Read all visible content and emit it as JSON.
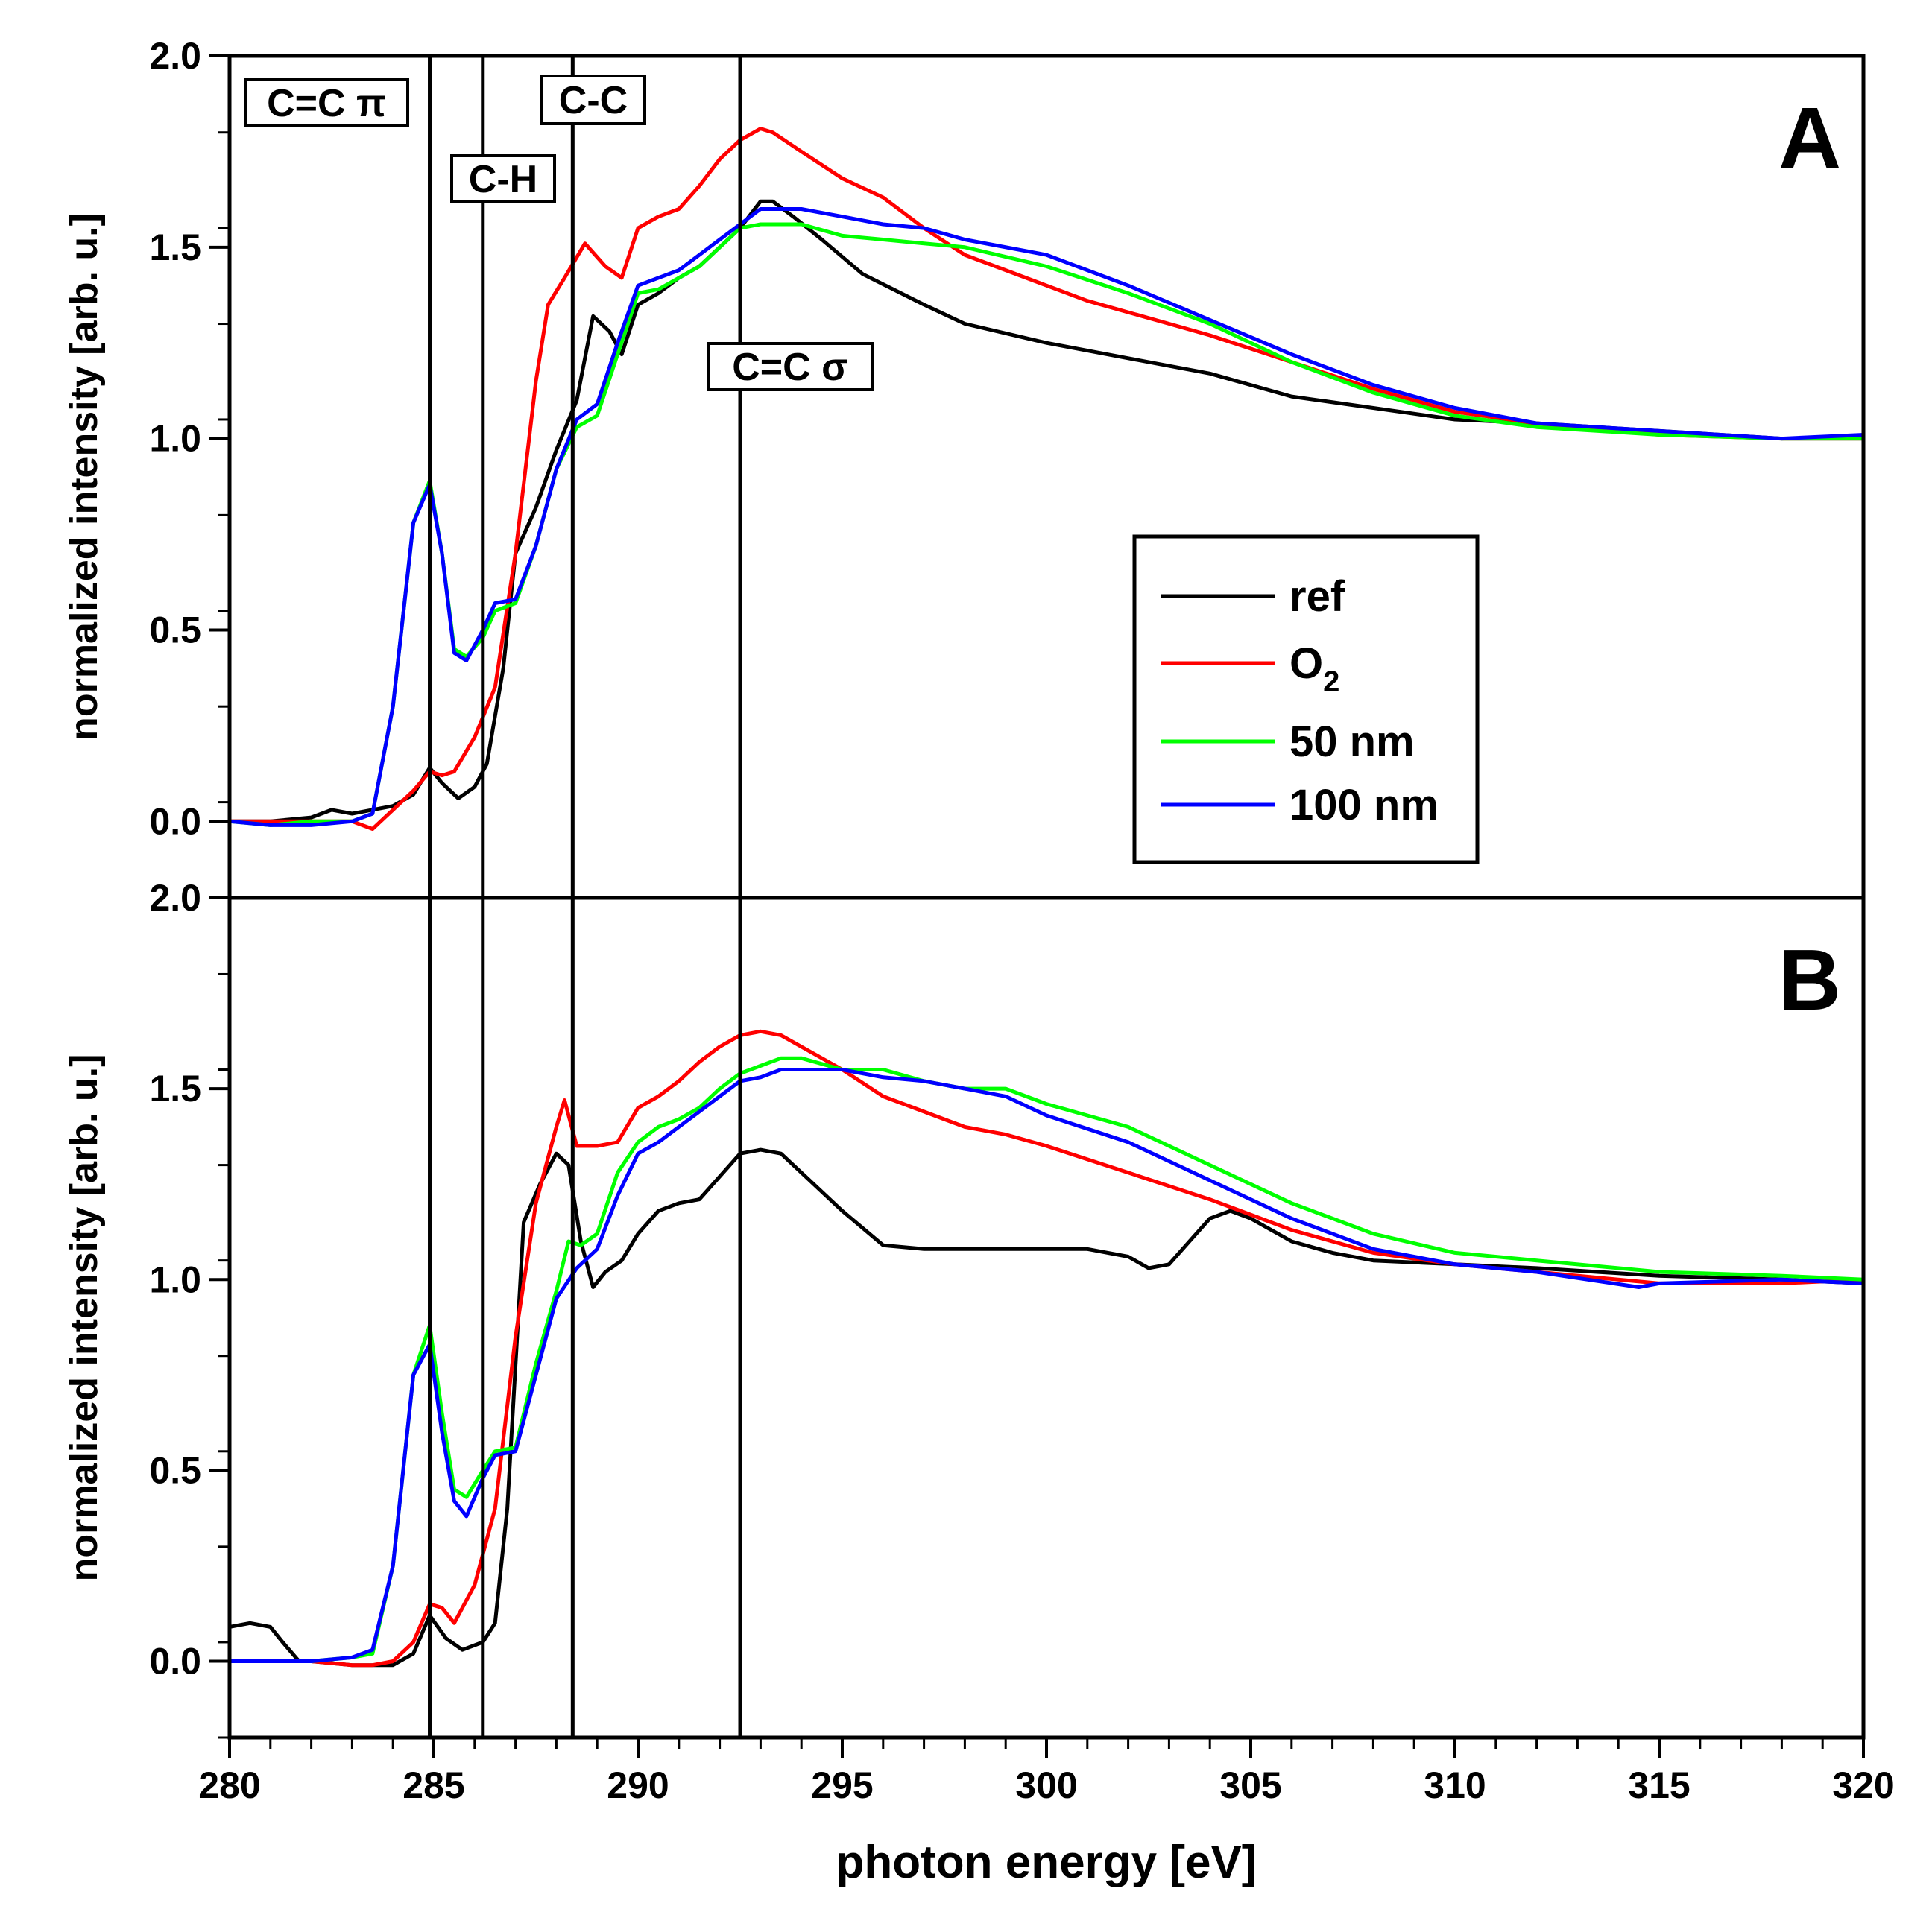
{
  "chart_data": [
    {
      "panel": "A",
      "type": "line",
      "title": "A",
      "xlabel": "photon energy [eV]",
      "ylabel": "normalized intensity [arb. u.]",
      "xlim": [
        280,
        320
      ],
      "ylim": [
        -0.2,
        2.0
      ],
      "xticks": [
        "280",
        "285",
        "290",
        "295",
        "300",
        "305",
        "310",
        "315",
        "320"
      ],
      "yticks": [
        "0.0",
        "0.5",
        "1.0",
        "1.5",
        "2.0"
      ],
      "yticks_values": [
        0.0,
        0.5,
        1.0,
        1.5,
        2.0
      ],
      "grid": false,
      "legend": {
        "position": "middle-right",
        "entries": [
          "ref",
          "O",
          "50 nm",
          "100 nm"
        ],
        "o2_subscript": "2"
      },
      "series": [
        {
          "name": "ref",
          "color": "#000000",
          "x": [
            280,
            281,
            282,
            282.5,
            283,
            284,
            284.5,
            284.9,
            285.2,
            285.6,
            286,
            286.3,
            286.7,
            287,
            287.5,
            288,
            288.5,
            288.9,
            289.3,
            289.6,
            290,
            290.5,
            291,
            291.5,
            292,
            292.5,
            293,
            293.3,
            293.8,
            294.5,
            295.5,
            297,
            298,
            300,
            302,
            304,
            306,
            308,
            310,
            312,
            315,
            318,
            320
          ],
          "values": [
            0.0,
            0.0,
            0.01,
            0.03,
            0.02,
            0.04,
            0.07,
            0.14,
            0.1,
            0.06,
            0.09,
            0.15,
            0.4,
            0.7,
            0.82,
            0.97,
            1.1,
            1.32,
            1.28,
            1.22,
            1.35,
            1.38,
            1.42,
            1.45,
            1.5,
            1.55,
            1.62,
            1.62,
            1.58,
            1.52,
            1.43,
            1.35,
            1.3,
            1.25,
            1.21,
            1.17,
            1.11,
            1.08,
            1.05,
            1.04,
            1.02,
            1.0,
            1.0
          ]
        },
        {
          "name": "O",
          "color": "#ff0000",
          "x": [
            280,
            281,
            282,
            283,
            283.5,
            284,
            284.5,
            284.9,
            285.2,
            285.5,
            286,
            286.5,
            287,
            287.5,
            287.8,
            288.2,
            288.7,
            289.2,
            289.6,
            290,
            290.5,
            291,
            291.5,
            292,
            292.5,
            293,
            293.3,
            294,
            295,
            296,
            297,
            298,
            299,
            300,
            301,
            302,
            303,
            304,
            306,
            308,
            310,
            312,
            315,
            318,
            320
          ],
          "values": [
            0.0,
            0.0,
            0.0,
            0.0,
            -0.02,
            0.03,
            0.08,
            0.13,
            0.12,
            0.13,
            0.22,
            0.35,
            0.7,
            1.15,
            1.35,
            1.42,
            1.51,
            1.45,
            1.42,
            1.55,
            1.58,
            1.6,
            1.66,
            1.73,
            1.78,
            1.81,
            1.8,
            1.75,
            1.68,
            1.63,
            1.55,
            1.48,
            1.44,
            1.4,
            1.36,
            1.33,
            1.3,
            1.27,
            1.2,
            1.13,
            1.07,
            1.04,
            1.01,
            1.0,
            1.0
          ]
        },
        {
          "name": "50 nm",
          "color": "#00ff00",
          "x": [
            280,
            281,
            282,
            283,
            283.5,
            284,
            284.5,
            284.9,
            285.2,
            285.5,
            285.8,
            286.2,
            286.5,
            287,
            287.5,
            288,
            288.5,
            289,
            289.5,
            290,
            290.5,
            291,
            291.5,
            292,
            292.5,
            293,
            294,
            295,
            296,
            297,
            298,
            300,
            302,
            304,
            306,
            308,
            310,
            312,
            315,
            318,
            320
          ],
          "values": [
            0.0,
            -0.01,
            0.0,
            0.0,
            0.02,
            0.3,
            0.78,
            0.89,
            0.7,
            0.45,
            0.43,
            0.48,
            0.55,
            0.57,
            0.72,
            0.92,
            1.03,
            1.06,
            1.22,
            1.38,
            1.39,
            1.42,
            1.45,
            1.5,
            1.55,
            1.56,
            1.56,
            1.53,
            1.52,
            1.51,
            1.5,
            1.45,
            1.38,
            1.3,
            1.2,
            1.12,
            1.06,
            1.03,
            1.01,
            1.0,
            1.0
          ]
        },
        {
          "name": "100 nm",
          "color": "#0000ff",
          "x": [
            280,
            281,
            282,
            283,
            283.5,
            284,
            284.5,
            284.9,
            285.2,
            285.5,
            285.8,
            286.2,
            286.5,
            287,
            287.5,
            288,
            288.5,
            289,
            289.5,
            290,
            290.5,
            291,
            291.5,
            292,
            292.5,
            293,
            294,
            295,
            296,
            297,
            298,
            300,
            302,
            304,
            306,
            308,
            310,
            312,
            315,
            318,
            320
          ],
          "values": [
            0.0,
            -0.01,
            -0.01,
            0.0,
            0.02,
            0.3,
            0.78,
            0.88,
            0.7,
            0.44,
            0.42,
            0.5,
            0.57,
            0.58,
            0.72,
            0.92,
            1.05,
            1.09,
            1.25,
            1.4,
            1.42,
            1.44,
            1.48,
            1.52,
            1.56,
            1.6,
            1.6,
            1.58,
            1.56,
            1.55,
            1.52,
            1.48,
            1.4,
            1.31,
            1.22,
            1.14,
            1.08,
            1.04,
            1.02,
            1.0,
            1.01
          ]
        }
      ],
      "annotations": [
        {
          "text": "C=C π",
          "x": 284.9
        },
        {
          "text": "C-H",
          "x": 286.2
        },
        {
          "text": "C-C",
          "x": 288.4
        },
        {
          "text": "C=C σ",
          "x": 292.5
        }
      ]
    },
    {
      "panel": "B",
      "type": "line",
      "title": "B",
      "xlabel": "photon energy [eV]",
      "ylabel": "normalized intensity [arb. u.]",
      "xlim": [
        280,
        320
      ],
      "ylim": [
        -0.2,
        2.0
      ],
      "xticks": [
        "280",
        "285",
        "290",
        "295",
        "300",
        "305",
        "310",
        "315",
        "320"
      ],
      "yticks": [
        "0.0",
        "0.5",
        "1.0",
        "1.5",
        "2.0"
      ],
      "yticks_values": [
        0.0,
        0.5,
        1.0,
        1.5,
        2.0
      ],
      "grid": false,
      "series": [
        {
          "name": "ref",
          "color": "#000000",
          "x": [
            280,
            280.5,
            281,
            281.3,
            281.7,
            282,
            283,
            284,
            284.5,
            284.9,
            285.3,
            285.7,
            286.2,
            286.5,
            286.8,
            287.2,
            287.6,
            288,
            288.3,
            288.6,
            288.9,
            289.2,
            289.6,
            290,
            290.5,
            291,
            291.5,
            292,
            292.5,
            293,
            293.5,
            294,
            295,
            296,
            297,
            298,
            299,
            300,
            301,
            302,
            302.5,
            303,
            303.5,
            304,
            304.5,
            305,
            306,
            307,
            308,
            310,
            312,
            315,
            318,
            320
          ],
          "values": [
            0.09,
            0.1,
            0.09,
            0.05,
            0.0,
            0.0,
            -0.01,
            -0.01,
            0.02,
            0.12,
            0.06,
            0.03,
            0.05,
            0.1,
            0.4,
            1.15,
            1.25,
            1.33,
            1.3,
            1.1,
            0.98,
            1.02,
            1.05,
            1.12,
            1.18,
            1.2,
            1.21,
            1.27,
            1.33,
            1.34,
            1.33,
            1.28,
            1.18,
            1.09,
            1.08,
            1.08,
            1.08,
            1.08,
            1.08,
            1.06,
            1.03,
            1.04,
            1.1,
            1.16,
            1.18,
            1.16,
            1.1,
            1.07,
            1.05,
            1.04,
            1.03,
            1.01,
            1.0,
            0.99
          ]
        },
        {
          "name": "O",
          "color": "#ff0000",
          "x": [
            280,
            281,
            282,
            283,
            283.5,
            284,
            284.5,
            284.9,
            285.2,
            285.5,
            286,
            286.5,
            287,
            287.5,
            288,
            288.2,
            288.5,
            289,
            289.5,
            290,
            290.5,
            291,
            291.5,
            292,
            292.5,
            293,
            293.5,
            294,
            295,
            296,
            297,
            298,
            299,
            300,
            302,
            304,
            306,
            308,
            310,
            312,
            315,
            318,
            320
          ],
          "values": [
            0.0,
            0.0,
            0.0,
            -0.01,
            -0.01,
            0.0,
            0.05,
            0.15,
            0.14,
            0.1,
            0.2,
            0.4,
            0.85,
            1.2,
            1.4,
            1.47,
            1.35,
            1.35,
            1.36,
            1.45,
            1.48,
            1.52,
            1.57,
            1.61,
            1.64,
            1.65,
            1.64,
            1.61,
            1.55,
            1.48,
            1.44,
            1.4,
            1.38,
            1.35,
            1.28,
            1.21,
            1.13,
            1.07,
            1.04,
            1.02,
            0.99,
            0.99,
            1.0
          ]
        },
        {
          "name": "50 nm",
          "color": "#00ff00",
          "x": [
            280,
            281,
            282,
            283,
            283.5,
            284,
            284.5,
            284.9,
            285.2,
            285.5,
            285.8,
            286.2,
            286.5,
            287,
            287.5,
            288,
            288.3,
            288.6,
            289,
            289.5,
            290,
            290.5,
            291,
            291.5,
            292,
            292.5,
            293,
            293.5,
            294,
            295,
            296,
            297,
            298,
            299,
            300,
            302,
            304,
            306,
            308,
            310,
            312,
            315,
            318,
            320
          ],
          "values": [
            0.0,
            0.0,
            0.0,
            0.01,
            0.02,
            0.25,
            0.75,
            0.88,
            0.65,
            0.45,
            0.43,
            0.5,
            0.55,
            0.56,
            0.78,
            0.97,
            1.1,
            1.09,
            1.12,
            1.28,
            1.36,
            1.4,
            1.42,
            1.45,
            1.5,
            1.54,
            1.56,
            1.58,
            1.58,
            1.55,
            1.55,
            1.52,
            1.5,
            1.5,
            1.46,
            1.4,
            1.3,
            1.2,
            1.12,
            1.07,
            1.05,
            1.02,
            1.01,
            1.0
          ]
        },
        {
          "name": "100 nm",
          "color": "#0000ff",
          "x": [
            280,
            281,
            282,
            283,
            283.5,
            284,
            284.5,
            284.9,
            285.2,
            285.5,
            285.8,
            286.2,
            286.5,
            287,
            287.5,
            288,
            288.5,
            289,
            289.5,
            290,
            290.5,
            291,
            291.5,
            292,
            292.5,
            293,
            293.5,
            294,
            295,
            296,
            297,
            298,
            299,
            300,
            302,
            304,
            306,
            308,
            310,
            312,
            314.5,
            315,
            318,
            320
          ],
          "values": [
            0.0,
            0.0,
            0.0,
            0.01,
            0.03,
            0.25,
            0.75,
            0.83,
            0.6,
            0.42,
            0.38,
            0.48,
            0.54,
            0.55,
            0.75,
            0.95,
            1.03,
            1.08,
            1.22,
            1.33,
            1.36,
            1.4,
            1.44,
            1.48,
            1.52,
            1.53,
            1.55,
            1.55,
            1.55,
            1.53,
            1.52,
            1.5,
            1.48,
            1.43,
            1.36,
            1.26,
            1.16,
            1.08,
            1.04,
            1.02,
            0.98,
            0.99,
            1.0,
            0.99
          ]
        }
      ]
    }
  ]
}
